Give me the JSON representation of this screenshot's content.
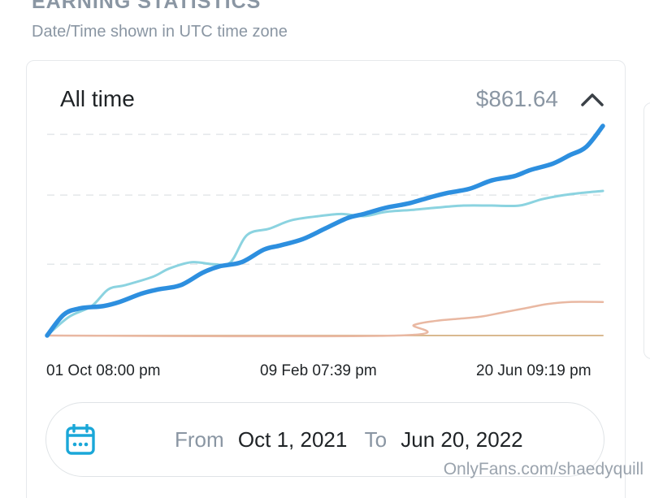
{
  "header": {
    "title": "EARNING STATISTICS",
    "subtitle": "Date/Time shown in UTC time zone"
  },
  "card": {
    "title": "All time",
    "total": "$861.64"
  },
  "chart_data": {
    "type": "line",
    "x_ticks": [
      "01 Oct 08:00 pm",
      "09 Feb 07:39 pm",
      "20 Jun 09:19 pm"
    ],
    "ylim": [
      0,
      1
    ],
    "grid": true,
    "series": [
      {
        "color": "#2d8fdf",
        "x": [
          0,
          0.03,
          0.06,
          0.1,
          0.13,
          0.17,
          0.2,
          0.24,
          0.28,
          0.31,
          0.35,
          0.39,
          0.42,
          0.46,
          0.5,
          0.54,
          0.57,
          0.61,
          0.65,
          0.69,
          0.72,
          0.76,
          0.8,
          0.84,
          0.87,
          0.91,
          0.94,
          0.97,
          1
        ],
        "y": [
          0,
          0.1,
          0.13,
          0.14,
          0.16,
          0.2,
          0.22,
          0.24,
          0.3,
          0.33,
          0.35,
          0.41,
          0.43,
          0.46,
          0.51,
          0.56,
          0.58,
          0.61,
          0.63,
          0.66,
          0.68,
          0.7,
          0.74,
          0.76,
          0.79,
          0.82,
          0.86,
          0.9,
          1
        ]
      },
      {
        "color": "#8bd3e0",
        "x": [
          0,
          0.04,
          0.08,
          0.11,
          0.14,
          0.19,
          0.22,
          0.26,
          0.3,
          0.33,
          0.36,
          0.4,
          0.44,
          0.49,
          0.53,
          0.57,
          0.61,
          0.66,
          0.7,
          0.75,
          0.8,
          0.85,
          0.89,
          0.93,
          0.96,
          1
        ],
        "y": [
          0,
          0.09,
          0.14,
          0.22,
          0.24,
          0.28,
          0.32,
          0.35,
          0.34,
          0.35,
          0.48,
          0.51,
          0.55,
          0.57,
          0.58,
          0.57,
          0.59,
          0.6,
          0.61,
          0.62,
          0.62,
          0.62,
          0.65,
          0.67,
          0.68,
          0.69
        ]
      },
      {
        "color": "#e9b8a2",
        "x": [
          0,
          0.63,
          0.66,
          0.7,
          0.74,
          0.78,
          0.82,
          0.86,
          0.9,
          0.94,
          1
        ],
        "y": [
          0,
          0,
          0.05,
          0.07,
          0.08,
          0.09,
          0.11,
          0.13,
          0.15,
          0.16,
          0.16
        ]
      },
      {
        "color": "#d9b990",
        "x": [
          0,
          1
        ],
        "y": [
          0,
          0
        ]
      }
    ]
  },
  "date_range": {
    "from_label": "From",
    "from_value": "Oct 1, 2021",
    "to_label": "To",
    "to_value": "Jun 20, 2022"
  },
  "icons": {
    "collapse": "chevron-up-icon",
    "calendar": "calendar-icon"
  },
  "watermark": "OnlyFans.com/shaedyquill"
}
